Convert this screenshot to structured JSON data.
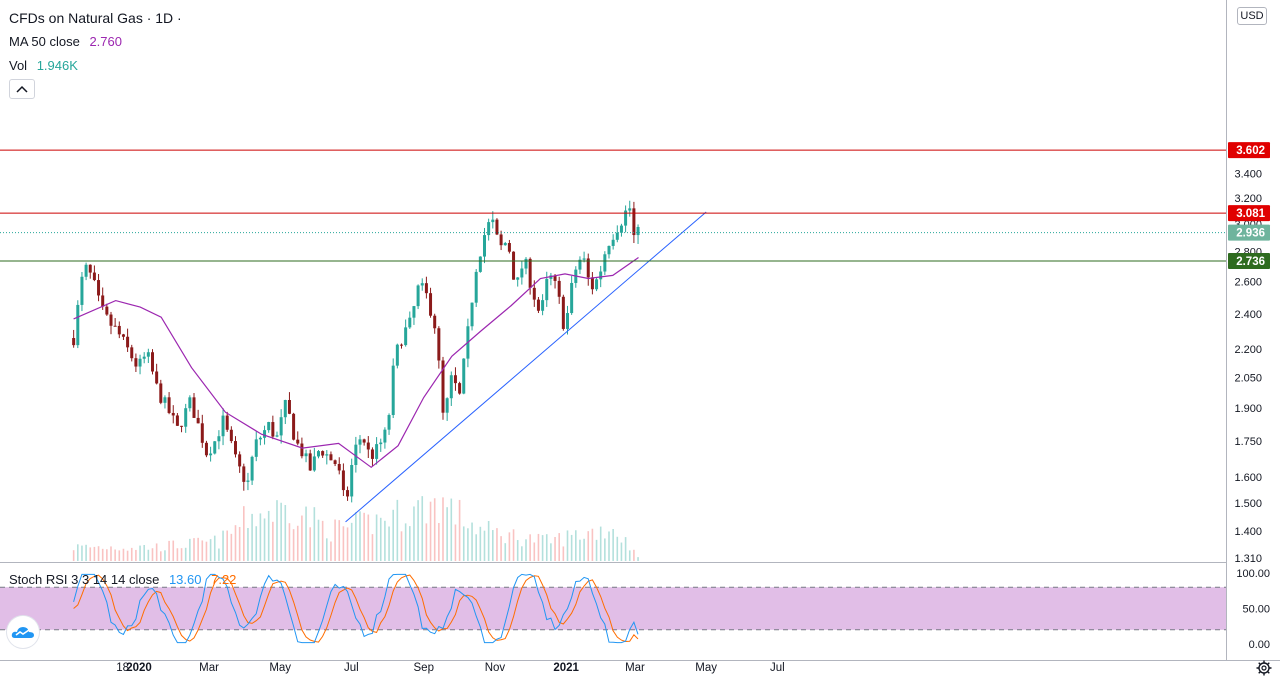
{
  "header": {
    "symbol": "CFDs on Natural Gas · 1D ·",
    "ma_label": "MA 50 close",
    "ma_value": "2.760",
    "vol_label": "Vol",
    "vol_value": "1.946K"
  },
  "currency": "USD",
  "stoch": {
    "label": "Stoch RSI 3 3 14 14 close",
    "k_value": "13.60",
    "d_value": "7.22"
  },
  "colors": {
    "up": "#26a69a",
    "down": "#8b1a1a",
    "ma": "#9c27b0",
    "hline_red": "#cc0000",
    "hline_green": "#2e6b1f",
    "trend": "#2962ff",
    "k": "#2196f3",
    "d": "#ff6d00",
    "band": "#e1bee7"
  },
  "price_axis": {
    "ticks": [
      "3.600",
      "3.400",
      "3.200",
      "3.000",
      "2.800",
      "2.600",
      "2.400",
      "2.200",
      "2.050",
      "1.900",
      "1.750",
      "1.600",
      "1.500",
      "1.400",
      "1.310"
    ]
  },
  "stoch_axis": {
    "ticks": [
      "100.00",
      "50.00",
      "0.00"
    ]
  },
  "time_axis": {
    "labels": [
      "18",
      "2020",
      "Mar",
      "May",
      "Jul",
      "Sep",
      "Nov",
      "2021",
      "Mar",
      "May",
      "Jul"
    ]
  },
  "price_tags": {
    "resistance_high": "3.602",
    "resistance_mid": "3.081",
    "last_price": "2.936",
    "support": "2.736"
  },
  "chart_data": {
    "type": "candlestick",
    "title": "CFDs on Natural Gas · 1D",
    "y_scale": "log",
    "ylim": [
      1.29,
      3.82
    ],
    "horizontal_lines": [
      3.602,
      3.081,
      2.736
    ],
    "last_price": 2.936,
    "trendline": {
      "from": [
        "2020-06-26",
        1.432
      ],
      "to": [
        "2021-05-01",
        3.09
      ]
    },
    "close_path": [
      {
        "d": "2019-11-06",
        "v": 2.26
      },
      {
        "d": "2019-11-15",
        "v": 2.7
      },
      {
        "d": "2019-11-22",
        "v": 2.62
      },
      {
        "d": "2019-11-29",
        "v": 2.43
      },
      {
        "d": "2019-12-06",
        "v": 2.35
      },
      {
        "d": "2019-12-13",
        "v": 2.3
      },
      {
        "d": "2019-12-20",
        "v": 2.22
      },
      {
        "d": "2019-12-31",
        "v": 2.1
      },
      {
        "d": "2020-01-08",
        "v": 2.17
      },
      {
        "d": "2020-01-17",
        "v": 1.98
      },
      {
        "d": "2020-01-24",
        "v": 1.91
      },
      {
        "d": "2020-02-03",
        "v": 1.8
      },
      {
        "d": "2020-02-14",
        "v": 1.93
      },
      {
        "d": "2020-02-28",
        "v": 1.7
      },
      {
        "d": "2020-03-06",
        "v": 1.75
      },
      {
        "d": "2020-03-13",
        "v": 1.84
      },
      {
        "d": "2020-03-25",
        "v": 1.65
      },
      {
        "d": "2020-04-03",
        "v": 1.57
      },
      {
        "d": "2020-04-09",
        "v": 1.73
      },
      {
        "d": "2020-04-21",
        "v": 1.82
      },
      {
        "d": "2020-04-28",
        "v": 1.76
      },
      {
        "d": "2020-05-06",
        "v": 1.92
      },
      {
        "d": "2020-05-14",
        "v": 1.75
      },
      {
        "d": "2020-05-20",
        "v": 1.7
      },
      {
        "d": "2020-05-27",
        "v": 1.63
      },
      {
        "d": "2020-06-04",
        "v": 1.72
      },
      {
        "d": "2020-06-12",
        "v": 1.68
      },
      {
        "d": "2020-06-19",
        "v": 1.65
      },
      {
        "d": "2020-06-26",
        "v": 1.48
      },
      {
        "d": "2020-07-03",
        "v": 1.7
      },
      {
        "d": "2020-07-10",
        "v": 1.78
      },
      {
        "d": "2020-07-17",
        "v": 1.68
      },
      {
        "d": "2020-07-24",
        "v": 1.72
      },
      {
        "d": "2020-08-01",
        "v": 1.8
      },
      {
        "d": "2020-08-07",
        "v": 2.15
      },
      {
        "d": "2020-08-14",
        "v": 2.28
      },
      {
        "d": "2020-08-21",
        "v": 2.35
      },
      {
        "d": "2020-08-28",
        "v": 2.58
      },
      {
        "d": "2020-09-04",
        "v": 2.5
      },
      {
        "d": "2020-09-11",
        "v": 2.32
      },
      {
        "d": "2020-09-18",
        "v": 1.83
      },
      {
        "d": "2020-09-25",
        "v": 2.05
      },
      {
        "d": "2020-10-02",
        "v": 1.95
      },
      {
        "d": "2020-10-09",
        "v": 2.3
      },
      {
        "d": "2020-10-16",
        "v": 2.7
      },
      {
        "d": "2020-10-23",
        "v": 2.92
      },
      {
        "d": "2020-10-29",
        "v": 3.04
      },
      {
        "d": "2020-11-05",
        "v": 2.82
      },
      {
        "d": "2020-11-12",
        "v": 2.88
      },
      {
        "d": "2020-11-19",
        "v": 2.55
      },
      {
        "d": "2020-11-26",
        "v": 2.75
      },
      {
        "d": "2020-12-03",
        "v": 2.55
      },
      {
        "d": "2020-12-10",
        "v": 2.38
      },
      {
        "d": "2020-12-17",
        "v": 2.65
      },
      {
        "d": "2020-12-24",
        "v": 2.55
      },
      {
        "d": "2020-12-31",
        "v": 2.3
      },
      {
        "d": "2021-01-08",
        "v": 2.66
      },
      {
        "d": "2021-01-15",
        "v": 2.78
      },
      {
        "d": "2021-01-22",
        "v": 2.55
      },
      {
        "d": "2021-01-29",
        "v": 2.63
      },
      {
        "d": "2021-02-05",
        "v": 2.85
      },
      {
        "d": "2021-02-12",
        "v": 2.95
      },
      {
        "d": "2021-02-19",
        "v": 3.05
      },
      {
        "d": "2021-02-24",
        "v": 3.15
      },
      {
        "d": "2021-03-01",
        "v": 2.85
      },
      {
        "d": "2021-03-04",
        "v": 2.94
      }
    ],
    "ma50_path": [
      {
        "d": "2019-11-06",
        "v": 2.37
      },
      {
        "d": "2019-12-12",
        "v": 2.48
      },
      {
        "d": "2020-01-02",
        "v": 2.44
      },
      {
        "d": "2020-01-20",
        "v": 2.38
      },
      {
        "d": "2020-02-15",
        "v": 2.1
      },
      {
        "d": "2020-03-15",
        "v": 1.88
      },
      {
        "d": "2020-04-15",
        "v": 1.78
      },
      {
        "d": "2020-05-20",
        "v": 1.72
      },
      {
        "d": "2020-06-20",
        "v": 1.74
      },
      {
        "d": "2020-07-18",
        "v": 1.64
      },
      {
        "d": "2020-08-10",
        "v": 1.73
      },
      {
        "d": "2020-09-01",
        "v": 1.95
      },
      {
        "d": "2020-09-25",
        "v": 2.16
      },
      {
        "d": "2020-10-20",
        "v": 2.3
      },
      {
        "d": "2020-11-15",
        "v": 2.45
      },
      {
        "d": "2020-12-10",
        "v": 2.62
      },
      {
        "d": "2020-12-31",
        "v": 2.65
      },
      {
        "d": "2021-01-20",
        "v": 2.62
      },
      {
        "d": "2021-02-10",
        "v": 2.64
      },
      {
        "d": "2021-03-04",
        "v": 2.76
      }
    ],
    "volume_path": [
      {
        "d": "2019-11-06",
        "v": 0.25
      },
      {
        "d": "2020-01-15",
        "v": 0.25
      },
      {
        "d": "2020-03-10",
        "v": 0.35
      },
      {
        "d": "2020-04-05",
        "v": 0.8
      },
      {
        "d": "2020-05-10",
        "v": 0.95
      },
      {
        "d": "2020-06-15",
        "v": 0.55
      },
      {
        "d": "2020-07-20",
        "v": 0.7
      },
      {
        "d": "2020-09-15",
        "v": 1.05
      },
      {
        "d": "2020-10-20",
        "v": 0.55
      },
      {
        "d": "2020-12-15",
        "v": 0.35
      },
      {
        "d": "2021-02-10",
        "v": 0.6
      },
      {
        "d": "2021-03-04",
        "v": 0.1
      }
    ],
    "stoch_rsi": {
      "k_last": 13.6,
      "d_last": 7.22,
      "upper": 80,
      "lower": 20,
      "ylim": [
        0,
        100
      ]
    }
  }
}
